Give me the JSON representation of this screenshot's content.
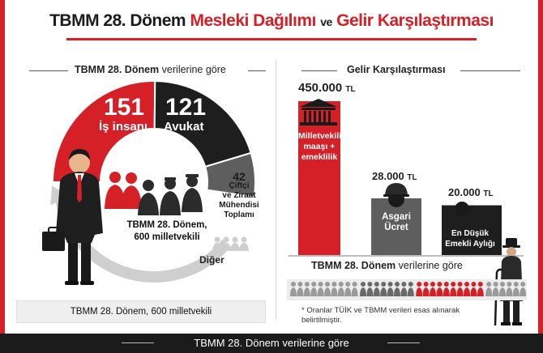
{
  "title": {
    "part1": "TBMM 28. Dönem",
    "part2": "Mesleki Dağılımı",
    "connector": "ve",
    "part3": "Gelir Karşılaştırması"
  },
  "left_subtitle": {
    "bold": "TBMM 28. Dönem",
    "rest": "verilerine göre"
  },
  "right_subtitle": "Gelir Karşılaştırması",
  "donut_center": {
    "line1": "TBMM 28. Dönem,",
    "line2": "600 milletvekili"
  },
  "left_caption": "TBMM 28. Dönem, 600 milletvekili",
  "people_strip_caption": {
    "bold": "TBMM 28. Dönem",
    "rest": "verilerine göre"
  },
  "note": "* Oranlar TÜİK ve TBMM verileri esas alınarak belirtilmiştir.",
  "footer": "TBMM 28. Dönem verilerine göre",
  "colors": {
    "accent_red": "#d62027",
    "dark": "#1e1e1e",
    "mid_gray": "#5e5e5e",
    "light_gray": "#cfcfcf"
  },
  "chart_data": [
    {
      "type": "pie",
      "title": "TBMM 28. Dönem, 600 milletvekili",
      "segments": [
        {
          "name": "İş insanı",
          "value": 151,
          "value_label": "151",
          "color": "#d62027"
        },
        {
          "name": "Avukat",
          "value": 121,
          "value_label": "121",
          "color": "#1e1e1e"
        },
        {
          "name": "Çiftçi ve Ziraat Mühendisi Toplamı",
          "value": 42,
          "value_label": "42",
          "color": "#5e5e5e"
        },
        {
          "name": "Diğer",
          "value": null,
          "value_label": "",
          "color": "#cfcfcf"
        }
      ],
      "farm_label_lines": [
        "Çiftçi",
        "ve Ziraat",
        "Mühendisi",
        "Toplamı"
      ]
    },
    {
      "type": "bar",
      "title": "Gelir Karşılaştırması",
      "unit": "TL",
      "categories": [
        "Milletvekili maaşı + emeklilik",
        "Asgari Ücret",
        "En Düşük Emekli Aylığı"
      ],
      "values": [
        450000,
        28000,
        20000
      ],
      "value_labels": [
        "450.000",
        "28.000",
        "20.000"
      ],
      "label_lines": [
        [
          "Milletvekili",
          "maaşı +",
          "emeklilik"
        ],
        [
          "Asgari",
          "Ücret"
        ],
        [
          "En Düşük",
          "Emekli Aylığı"
        ]
      ],
      "colors": [
        "#d62027",
        "#5e5e5e",
        "#1e1e1e"
      ]
    },
    {
      "type": "icon_array",
      "title": "TBMM 28. Dönem verilerine göre",
      "groups": [
        {
          "color": "#9a9a9a",
          "count": 10
        },
        {
          "color": "#6a6a6a",
          "count": 8
        },
        {
          "color": "#d62027",
          "count": 10
        },
        {
          "color": "#9a9a9a",
          "count": 6
        }
      ]
    }
  ]
}
